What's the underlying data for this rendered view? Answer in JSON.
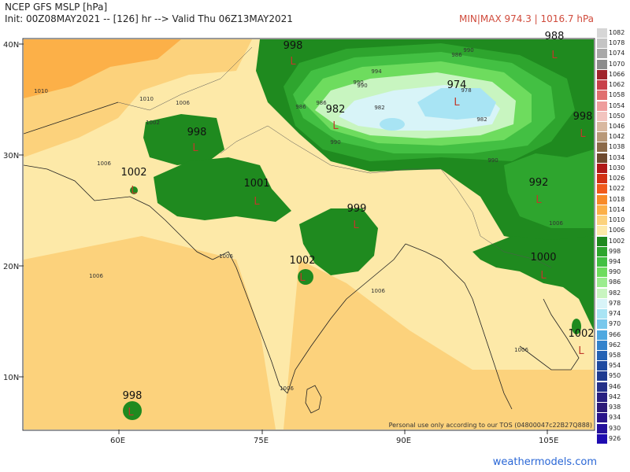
{
  "header": {
    "title": "NCEP GFS MSLP [hPa]",
    "subtitle": "Init: 00Z08MAY2021 -- [126] hr --> Valid Thu 06Z13MAY2021",
    "minmax": "MIN|MAX 974.3 | 1016.7 hPa"
  },
  "axes": {
    "lat_labels": [
      "40N",
      "30N",
      "20N",
      "10N"
    ],
    "lon_labels": [
      "60E",
      "75E",
      "90E",
      "105E"
    ]
  },
  "pressure_labels": [
    "998",
    "988",
    "974",
    "982",
    "998",
    "998",
    "1002",
    "1001",
    "999",
    "992",
    "1002",
    "1000",
    "1002",
    "998"
  ],
  "contour_labels": [
    "1010",
    "1010",
    "1006",
    "1006",
    "1002",
    "1006",
    "1006",
    "1006",
    "1006",
    "990",
    "986",
    "990",
    "986",
    "994",
    "990",
    "978",
    "982",
    "982",
    "990",
    "986",
    "990",
    "1006",
    "1006"
  ],
  "low_symbol": "L",
  "disclaimer": "Personal use only according to our TOS (04800047c22B27Q888)",
  "credit": "weathermodels.com",
  "legend": {
    "levels": [
      "1082",
      "1078",
      "1074",
      "1070",
      "1066",
      "1062",
      "1058",
      "1054",
      "1050",
      "1046",
      "1042",
      "1038",
      "1034",
      "1030",
      "1026",
      "1022",
      "1018",
      "1014",
      "1010",
      "1006",
      "1002",
      "998",
      "994",
      "990",
      "986",
      "982",
      "978",
      "974",
      "970",
      "966",
      "962",
      "958",
      "954",
      "950",
      "946",
      "942",
      "938",
      "934",
      "930",
      "926"
    ],
    "colors": [
      "#d6d6d6",
      "#c4c4c4",
      "#a8a8a8",
      "#8c8c8c",
      "#a0242c",
      "#c8404a",
      "#e06f6f",
      "#ee9d9d",
      "#f2c4bf",
      "#d8b8a0",
      "#b89878",
      "#8c6a48",
      "#6e4a2e",
      "#b01818",
      "#d23014",
      "#f05a1c",
      "#f88a28",
      "#fcb048",
      "#fcd27c",
      "#fde9a8",
      "#1f8a1f",
      "#2ea52e",
      "#43c043",
      "#6edc5e",
      "#9bec8e",
      "#c8f5c0",
      "#d8f4f8",
      "#a8e4f4",
      "#78c8ec",
      "#4ea8e0",
      "#3282cc",
      "#2462b4",
      "#1e4aa0",
      "#1e3a90",
      "#243088",
      "#281f80",
      "#2c1a78",
      "#2a148a",
      "#24109c",
      "#1e0cb0"
    ]
  }
}
